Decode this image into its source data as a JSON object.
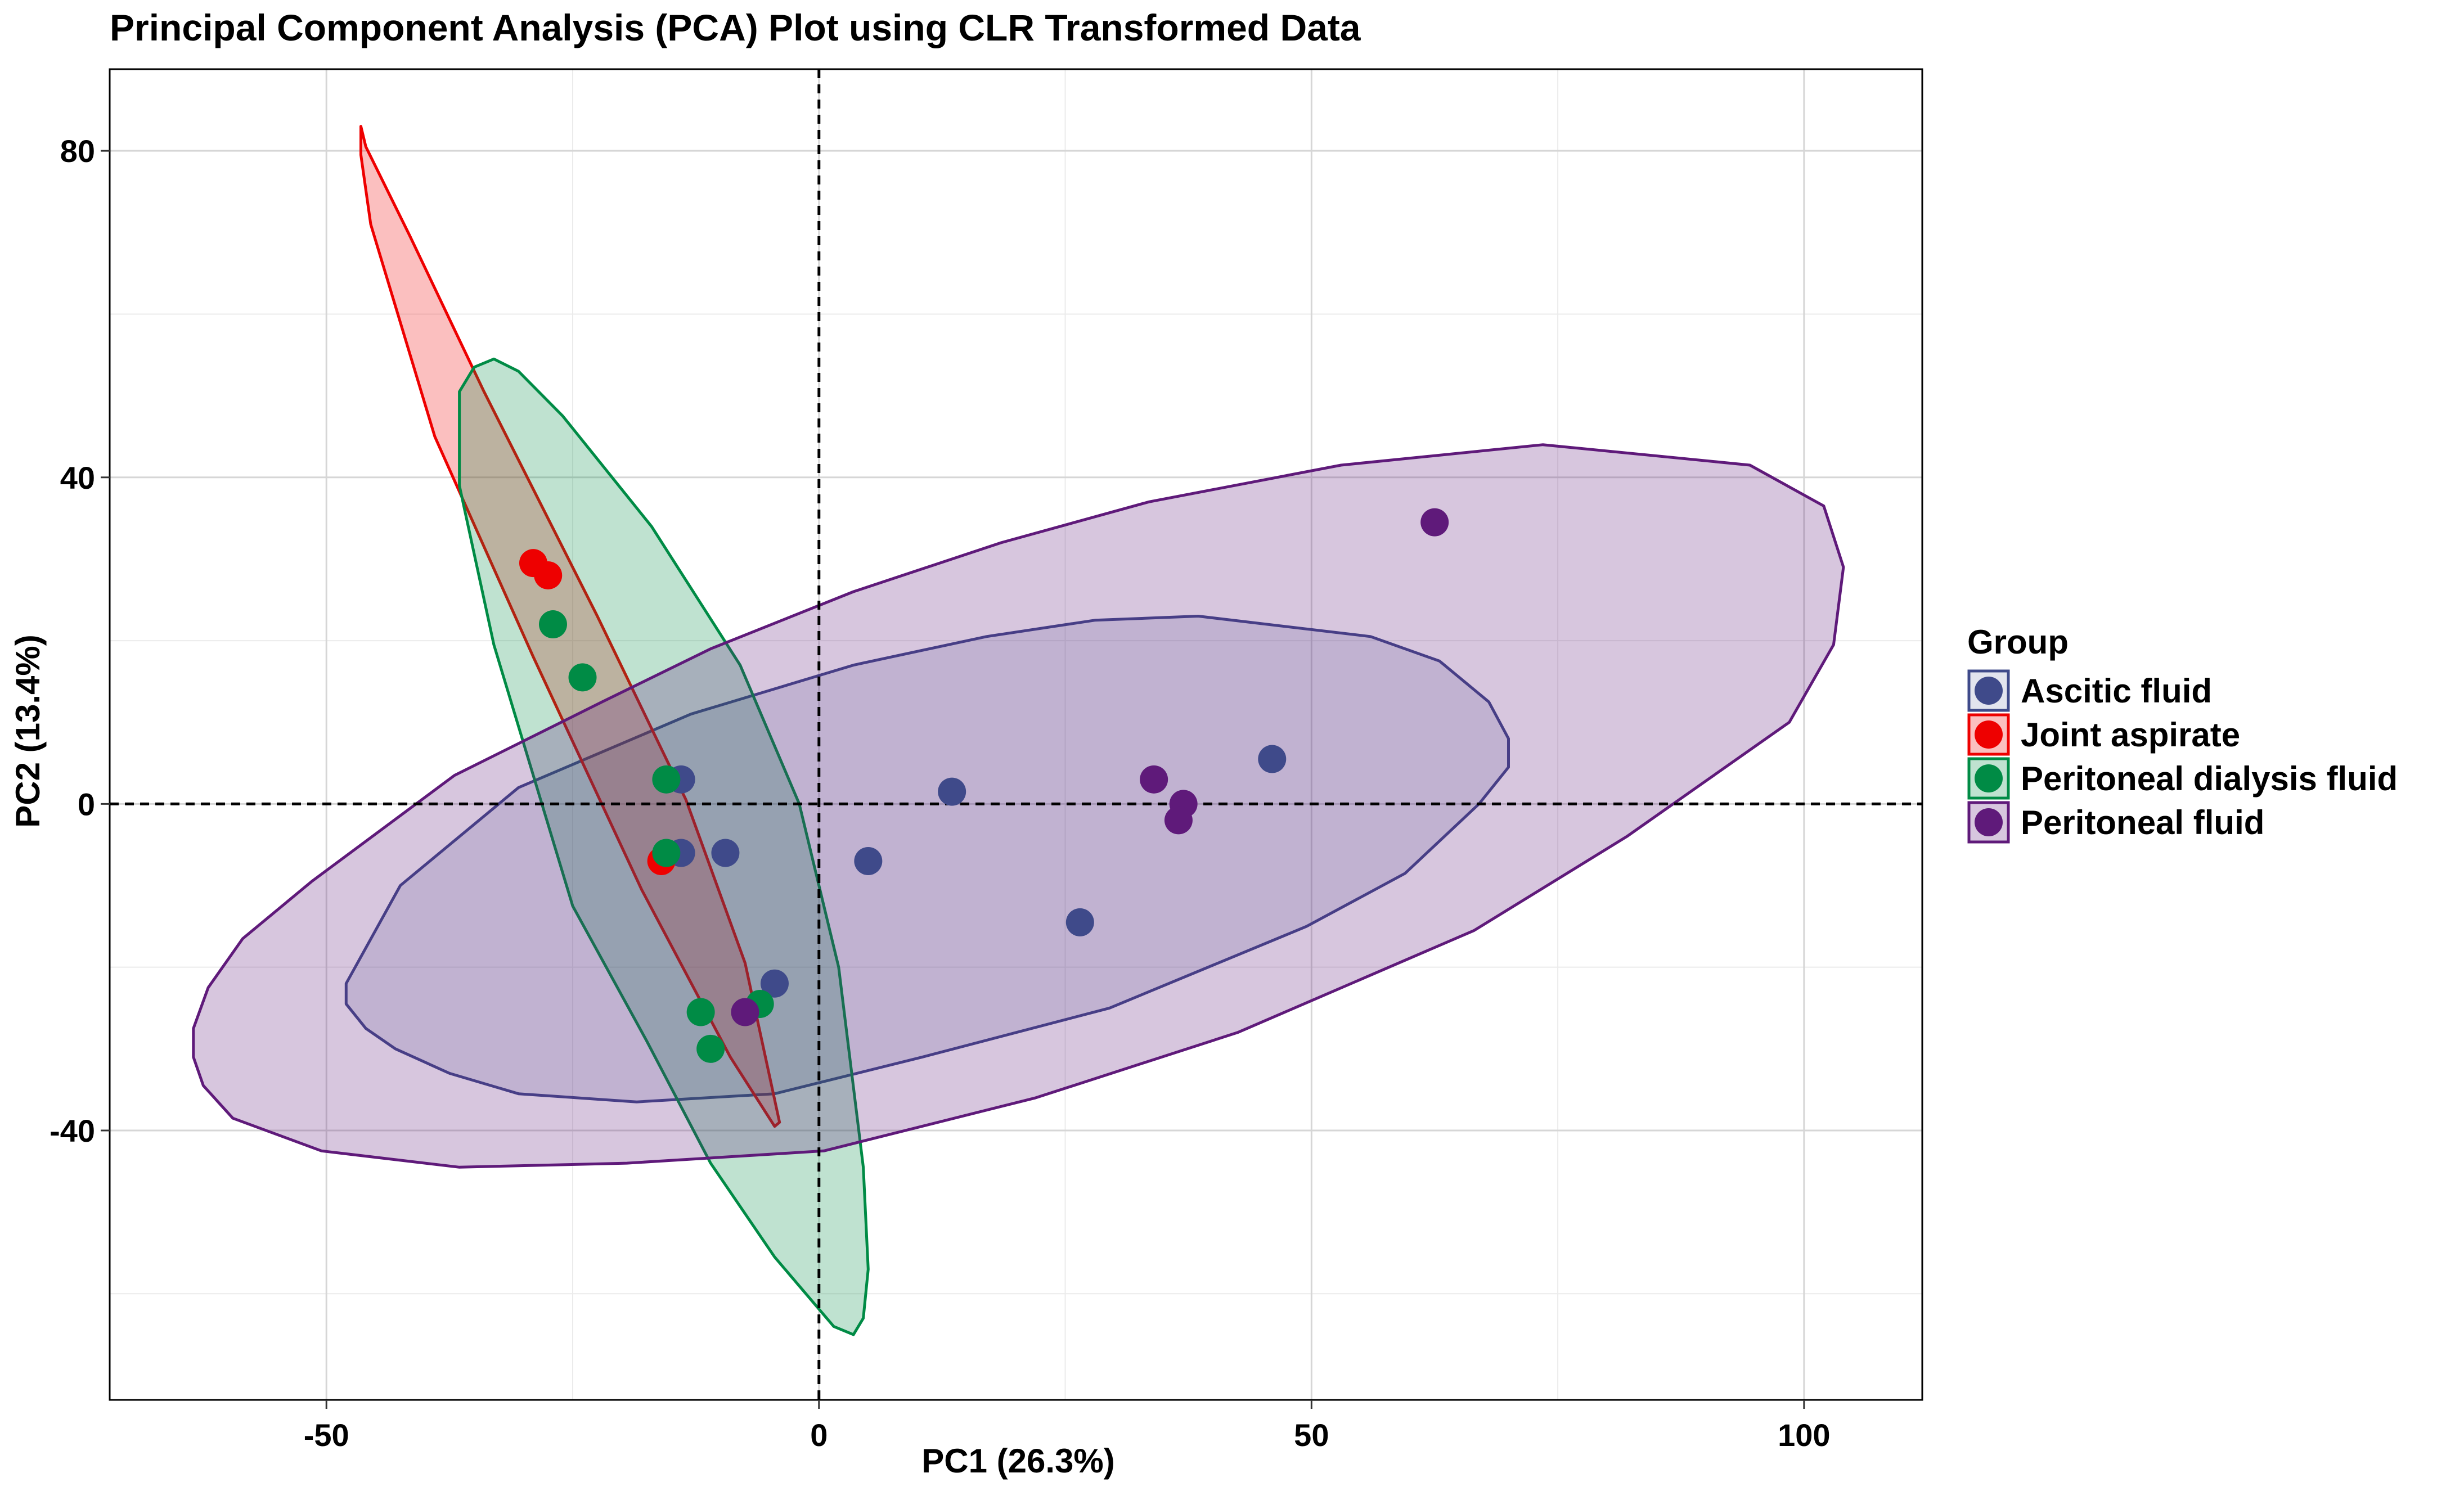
{
  "chart_data": {
    "type": "scatter",
    "title": "Principal Component Analysis (PCA) Plot using CLR Transformed Data",
    "xlabel": "PC1 (26.3%)",
    "ylabel": "PC2 (13.4%)",
    "xlim": [
      -72,
      112
    ],
    "ylim": [
      -73,
      90
    ],
    "x_ticks": [
      -50,
      0,
      50,
      100
    ],
    "y_ticks": [
      -40,
      0,
      40,
      80
    ],
    "x_ticks_minor": [
      -25,
      25,
      75
    ],
    "y_ticks_minor": [
      -60,
      -20,
      20,
      60
    ],
    "grid": true,
    "reference_lines": {
      "x": 0,
      "y": 0,
      "style": "dashed"
    },
    "legend": {
      "title": "Group",
      "position": "right"
    },
    "series": [
      {
        "name": "Ascitic fluid",
        "color": "#3F4A8A",
        "fill_opacity": 0.15,
        "points": [
          [
            -14,
            3
          ],
          [
            -14,
            -6
          ],
          [
            -9.5,
            -6
          ],
          [
            5,
            -7
          ],
          [
            13.5,
            1.5
          ],
          [
            26.5,
            -14.5
          ],
          [
            46,
            5.5
          ],
          [
            -4.5,
            -22
          ]
        ],
        "ellipse": [
          [
            -48,
            -22
          ],
          [
            -48,
            -24.5
          ],
          [
            -46,
            -27.5
          ],
          [
            -43,
            -30
          ],
          [
            -37.5,
            -33
          ],
          [
            -30.5,
            -35.5
          ],
          [
            -18.5,
            -36.5
          ],
          [
            -4.5,
            -35.5
          ],
          [
            10.5,
            -31
          ],
          [
            29.5,
            -25
          ],
          [
            49.5,
            -15
          ],
          [
            59.5,
            -8.5
          ],
          [
            67,
            0
          ],
          [
            70,
            4.5
          ],
          [
            70,
            8
          ],
          [
            68,
            12.5
          ],
          [
            63,
            17.5
          ],
          [
            56,
            20.5
          ],
          [
            38.5,
            23
          ],
          [
            28,
            22.5
          ],
          [
            17,
            20.5
          ],
          [
            3.5,
            17
          ],
          [
            -13,
            11
          ],
          [
            -30.5,
            2
          ],
          [
            -42.5,
            -10
          ]
        ]
      },
      {
        "name": "Joint aspirate",
        "color": "#EE0000",
        "fill_opacity": 0.25,
        "points": [
          [
            -29,
            29.5
          ],
          [
            -27.5,
            28
          ],
          [
            -16,
            -7
          ]
        ],
        "ellipse": [
          [
            -46.5,
            83
          ],
          [
            -46,
            80.5
          ],
          [
            -41.5,
            69.5
          ],
          [
            -34,
            50.5
          ],
          [
            -22.5,
            23
          ],
          [
            -13.5,
            0.5
          ],
          [
            -7.5,
            -19.5
          ],
          [
            -4,
            -39
          ],
          [
            -4.5,
            -39.5
          ],
          [
            -9,
            -31
          ],
          [
            -18,
            -10.5
          ],
          [
            -29,
            18
          ],
          [
            -39,
            45
          ],
          [
            -45.5,
            71
          ],
          [
            -46.5,
            79.5
          ]
        ]
      },
      {
        "name": "Peritoneal dialysis fluid",
        "color": "#008B45",
        "fill_opacity": 0.25,
        "points": [
          [
            -27,
            22
          ],
          [
            -24,
            15.5
          ],
          [
            -15.5,
            3
          ],
          [
            -15.5,
            -6
          ],
          [
            -12,
            -25.5
          ],
          [
            -6,
            -24.5
          ],
          [
            -11,
            -30
          ]
        ],
        "ellipse": [
          [
            -36.5,
            50.5
          ],
          [
            -35,
            53.5
          ],
          [
            -33,
            54.5
          ],
          [
            -30.5,
            53
          ],
          [
            -26,
            47.5
          ],
          [
            -17,
            34
          ],
          [
            -8,
            17
          ],
          [
            -2,
            0
          ],
          [
            2,
            -20
          ],
          [
            4.5,
            -44.5
          ],
          [
            5,
            -57
          ],
          [
            4.5,
            -63
          ],
          [
            3.5,
            -65
          ],
          [
            1.5,
            -64
          ],
          [
            -4.5,
            -55.5
          ],
          [
            -11,
            -44
          ],
          [
            -17.5,
            -29
          ],
          [
            -25,
            -12.5
          ],
          [
            -33,
            19.5
          ],
          [
            -36.5,
            39
          ]
        ]
      },
      {
        "name": "Peritoneal fluid",
        "color": "#5F1A7A",
        "fill_opacity": 0.25,
        "points": [
          [
            34,
            3
          ],
          [
            37,
            0
          ],
          [
            36.5,
            -2
          ],
          [
            -7.5,
            -25.5
          ],
          [
            62.5,
            34.5
          ]
        ],
        "ellipse": [
          [
            -63.5,
            -27.5
          ],
          [
            -62,
            -22.5
          ],
          [
            -58.5,
            -16.5
          ],
          [
            -51.5,
            -9.5
          ],
          [
            -37,
            3.5
          ],
          [
            -22,
            12.5
          ],
          [
            -11,
            19
          ],
          [
            3.5,
            26
          ],
          [
            18.5,
            32
          ],
          [
            33.5,
            37
          ],
          [
            53,
            41.5
          ],
          [
            73.5,
            44
          ],
          [
            94.5,
            41.5
          ],
          [
            102,
            36.5
          ],
          [
            104,
            29
          ],
          [
            103,
            19.5
          ],
          [
            98.5,
            10
          ],
          [
            82,
            -4
          ],
          [
            66.5,
            -15.5
          ],
          [
            42.5,
            -28
          ],
          [
            22,
            -36
          ],
          [
            0.5,
            -42.5
          ],
          [
            -19.5,
            -44
          ],
          [
            -36.5,
            -44.5
          ],
          [
            -50.5,
            -42.5
          ],
          [
            -59.5,
            -38.5
          ],
          [
            -62.5,
            -34.5
          ],
          [
            -63.5,
            -31
          ]
        ]
      }
    ]
  }
}
